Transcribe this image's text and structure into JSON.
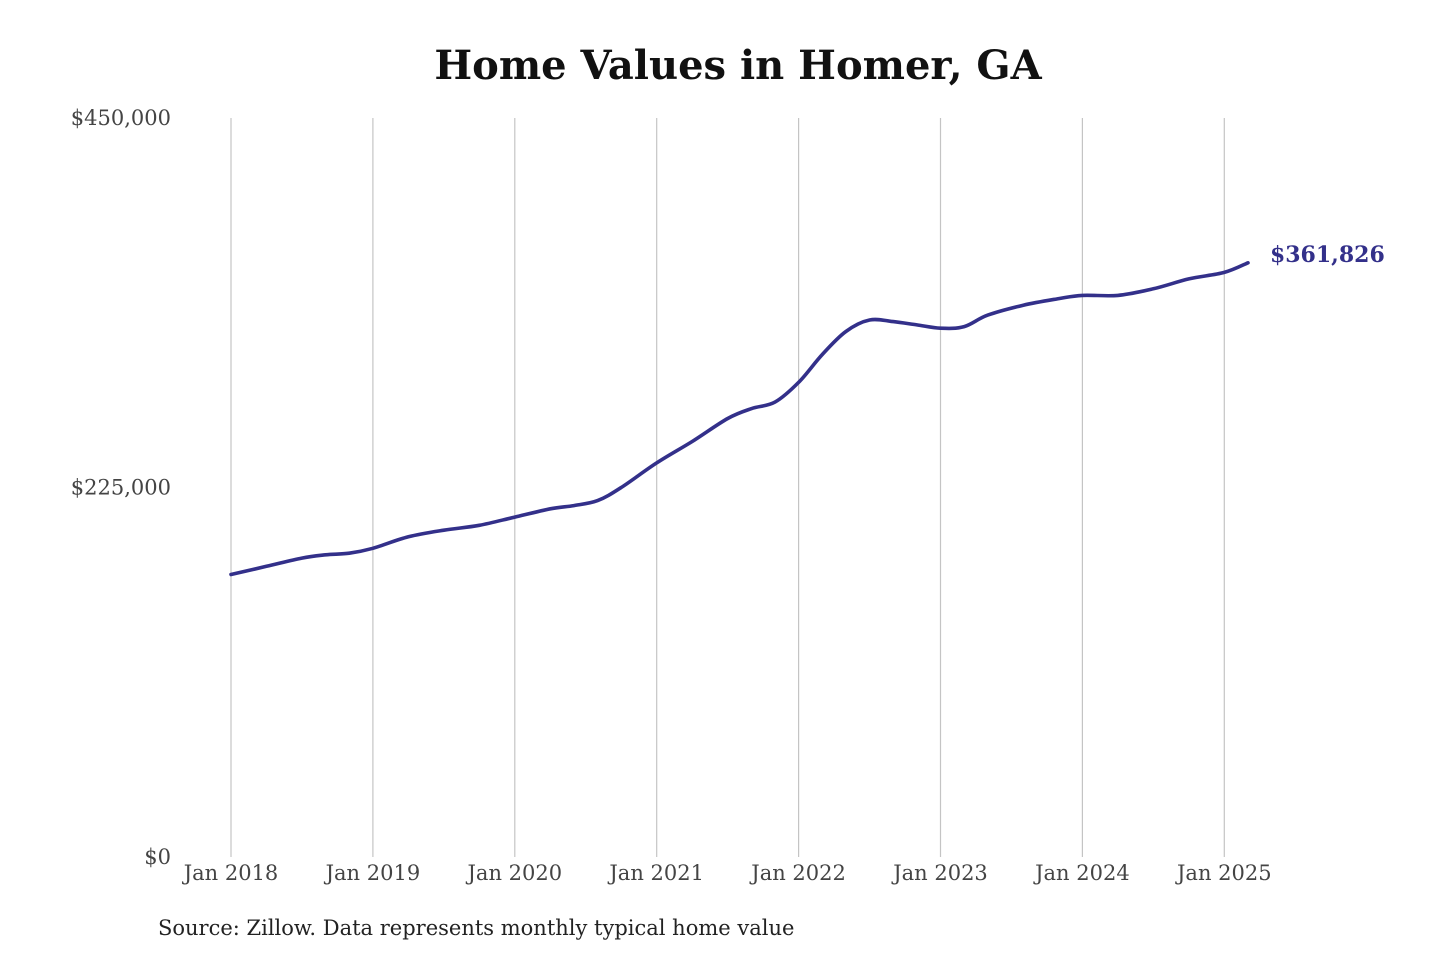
{
  "chart_data": {
    "type": "line",
    "title": "Home Values in Homer, GA",
    "xlabel": "",
    "ylabel": "",
    "x_range": [
      "2018-01",
      "2025-03"
    ],
    "ylim": [
      0,
      450000
    ],
    "y_ticks": [
      {
        "value": 0,
        "label": "$0"
      },
      {
        "value": 225000,
        "label": "$225,000"
      },
      {
        "value": 450000,
        "label": "$450,000"
      }
    ],
    "x_ticks": [
      {
        "date": "2018-01",
        "label": "Jan 2018"
      },
      {
        "date": "2019-01",
        "label": "Jan 2019"
      },
      {
        "date": "2020-01",
        "label": "Jan 2020"
      },
      {
        "date": "2021-01",
        "label": "Jan 2021"
      },
      {
        "date": "2022-01",
        "label": "Jan 2022"
      },
      {
        "date": "2023-01",
        "label": "Jan 2023"
      },
      {
        "date": "2024-01",
        "label": "Jan 2024"
      },
      {
        "date": "2025-01",
        "label": "Jan 2025"
      }
    ],
    "grid": {
      "vertical": true,
      "horizontal": false
    },
    "legend": "none",
    "series": [
      {
        "color": "#33308a",
        "end_label": "$361,826",
        "points": [
          {
            "x": "2018-01",
            "y": 172000
          },
          {
            "x": "2018-04",
            "y": 177000
          },
          {
            "x": "2018-07",
            "y": 182000
          },
          {
            "x": "2018-09",
            "y": 184000
          },
          {
            "x": "2018-11",
            "y": 185000
          },
          {
            "x": "2019-01",
            "y": 188000
          },
          {
            "x": "2019-04",
            "y": 195000
          },
          {
            "x": "2019-07",
            "y": 199000
          },
          {
            "x": "2019-10",
            "y": 202000
          },
          {
            "x": "2020-01",
            "y": 207000
          },
          {
            "x": "2020-04",
            "y": 212000
          },
          {
            "x": "2020-06",
            "y": 214000
          },
          {
            "x": "2020-08",
            "y": 217000
          },
          {
            "x": "2020-10",
            "y": 225000
          },
          {
            "x": "2021-01",
            "y": 240000
          },
          {
            "x": "2021-04",
            "y": 253000
          },
          {
            "x": "2021-07",
            "y": 267000
          },
          {
            "x": "2021-09",
            "y": 273000
          },
          {
            "x": "2021-11",
            "y": 277000
          },
          {
            "x": "2022-01",
            "y": 289000
          },
          {
            "x": "2022-03",
            "y": 306000
          },
          {
            "x": "2022-05",
            "y": 320000
          },
          {
            "x": "2022-07",
            "y": 327000
          },
          {
            "x": "2022-09",
            "y": 326000
          },
          {
            "x": "2022-11",
            "y": 324000
          },
          {
            "x": "2023-01",
            "y": 322000
          },
          {
            "x": "2023-03",
            "y": 323000
          },
          {
            "x": "2023-05",
            "y": 330000
          },
          {
            "x": "2023-08",
            "y": 336000
          },
          {
            "x": "2023-11",
            "y": 340000
          },
          {
            "x": "2024-01",
            "y": 342000
          },
          {
            "x": "2024-04",
            "y": 342000
          },
          {
            "x": "2024-07",
            "y": 346000
          },
          {
            "x": "2024-10",
            "y": 352000
          },
          {
            "x": "2025-01",
            "y": 356000
          },
          {
            "x": "2025-03",
            "y": 361826
          }
        ]
      }
    ]
  },
  "source_note": "Source: Zillow. Data represents monthly typical home value"
}
